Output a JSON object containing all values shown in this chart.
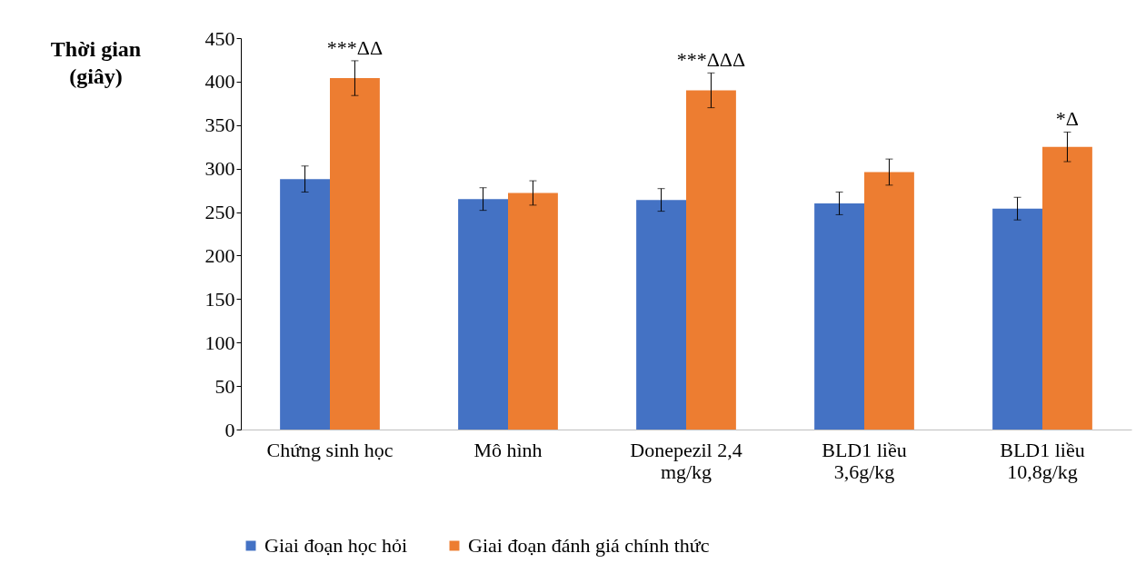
{
  "chart_data": {
    "type": "bar",
    "ylabel": "Thời gian (giây)",
    "categories": [
      "Chứng sinh học",
      "Mô hình",
      "Donepezil 2,4 mg/kg",
      "BLD1 liều 3,6g/kg",
      "BLD1 liều 10,8g/kg"
    ],
    "series": [
      {
        "name": "Giai đoạn học hỏi",
        "color": "#4472c4",
        "values": [
          288,
          265,
          264,
          260,
          254
        ],
        "errors": [
          15,
          13,
          13,
          13,
          13
        ]
      },
      {
        "name": "Giai đoạn đánh giá chính thức",
        "color": "#ed7d31",
        "values": [
          404,
          272,
          390,
          296,
          325
        ],
        "errors": [
          20,
          14,
          20,
          15,
          17
        ]
      }
    ],
    "ylim": [
      0,
      450
    ],
    "yticks": [
      0,
      50,
      100,
      150,
      200,
      250,
      300,
      350,
      400,
      450
    ],
    "grid": false,
    "legend": "bottom",
    "annotations": [
      {
        "text": "***ΔΔ",
        "x": "Chứng sinh học",
        "y": 404
      },
      {
        "text": "***ΔΔΔ",
        "x": "Donepezil 2,4 mg/kg",
        "y": 390
      },
      {
        "text": "*Δ",
        "x": "BLD1 liều 10,8g/kg",
        "y": 325
      }
    ]
  }
}
